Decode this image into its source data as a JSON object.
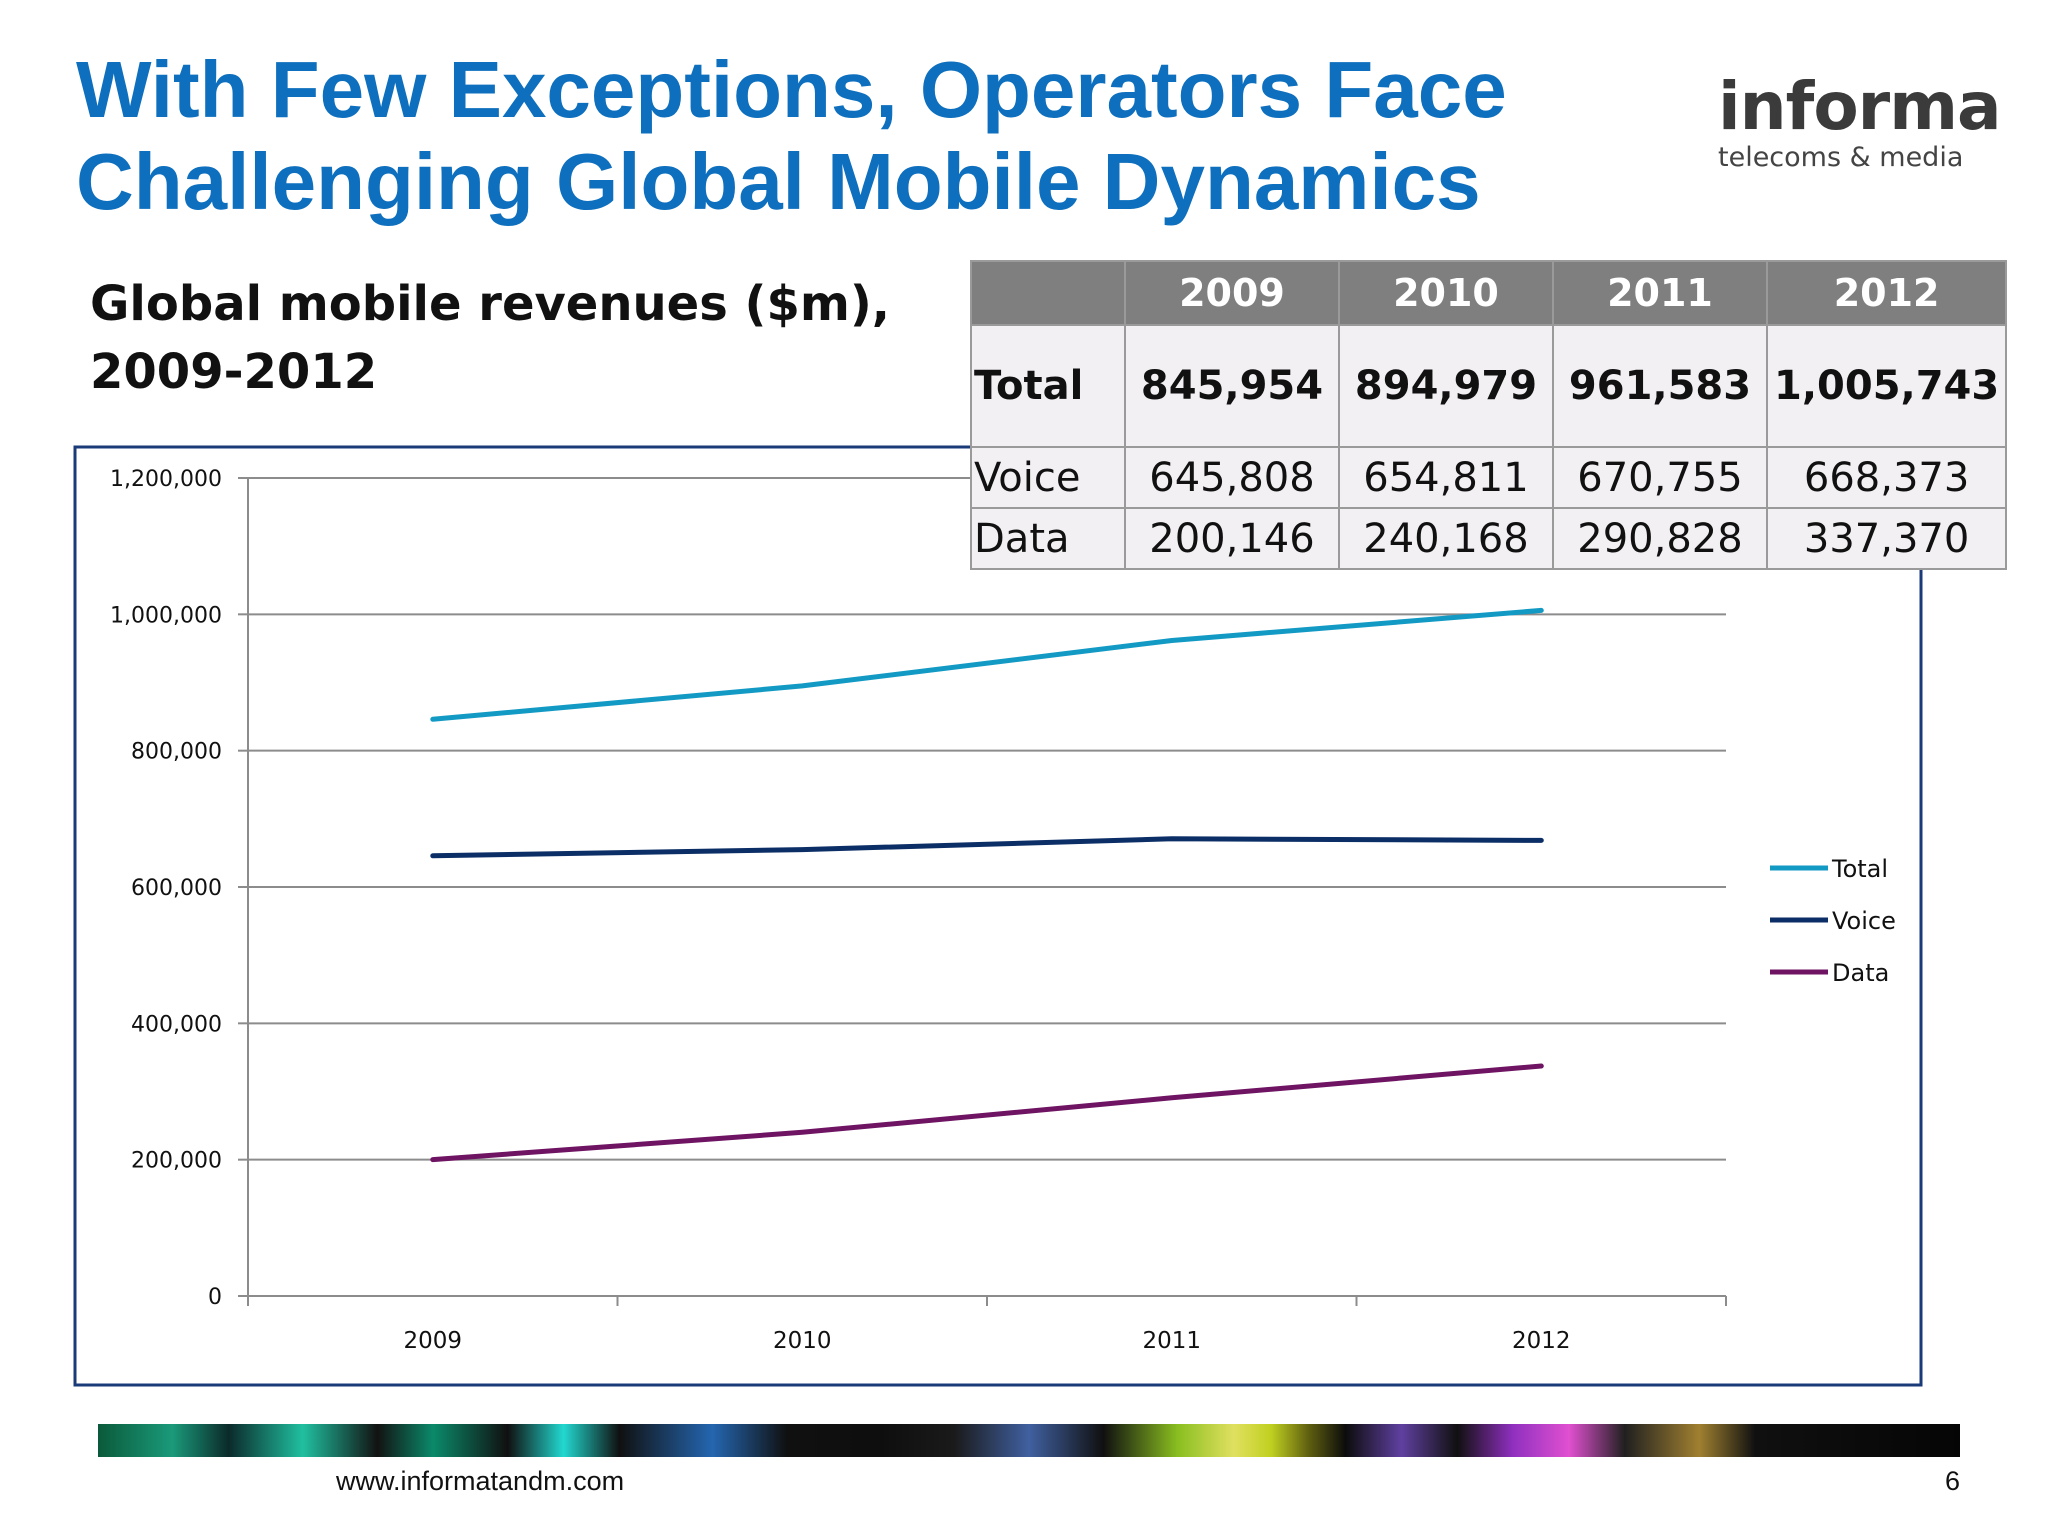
{
  "slide": {
    "title_line1": "With Few Exceptions, Operators Face",
    "title_line2": "Challenging Global Mobile Dynamics",
    "subtitle_line1": "Global mobile revenues ($m),",
    "subtitle_line2": "2009-2012",
    "logo_main": "informa",
    "logo_sub": "telecoms & media",
    "footer_url": "www.informatandm.com",
    "page_number": "6"
  },
  "table": {
    "headers": [
      "",
      "2009",
      "2010",
      "2011",
      "2012"
    ],
    "rows": [
      {
        "label": "Total",
        "values": [
          "845,954",
          "894,979",
          "961,583",
          "1,005,743"
        ]
      },
      {
        "label": "Voice",
        "values": [
          "645,808",
          "654,811",
          "670,755",
          "668,373"
        ]
      },
      {
        "label": "Data",
        "values": [
          "200,146",
          "240,168",
          "290,828",
          "337,370"
        ]
      }
    ]
  },
  "chart_data": {
    "type": "line",
    "title": "",
    "xlabel": "",
    "ylabel": "",
    "categories": [
      "2009",
      "2010",
      "2011",
      "2012"
    ],
    "series": [
      {
        "name": "Total",
        "values": [
          845954,
          894979,
          961583,
          1005743
        ],
        "color": "#139ac4"
      },
      {
        "name": "Voice",
        "values": [
          645808,
          654811,
          670755,
          668373
        ],
        "color": "#0c2e66"
      },
      {
        "name": "Data",
        "values": [
          200146,
          240168,
          290828,
          337370
        ],
        "color": "#6e1462"
      }
    ],
    "ylim": [
      0,
      1200000
    ],
    "yticks": [
      0,
      200000,
      400000,
      600000,
      800000,
      1000000,
      1200000
    ],
    "ytick_labels": [
      "0",
      "200,000",
      "400,000",
      "600,000",
      "800,000",
      "1,000,000",
      "1,200,000"
    ],
    "grid": true,
    "legend": "right"
  }
}
